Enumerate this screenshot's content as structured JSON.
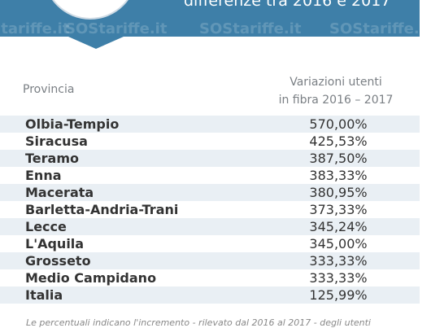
{
  "header": {
    "title": "differenze tra 2016 e 2017",
    "watermark": "SOStariffe.it"
  },
  "table": {
    "columns": [
      "Provincia",
      "Variazioni utenti",
      "in fibra 2016 – 2017"
    ],
    "rows": [
      [
        "Olbia-Tempio",
        "570,00%"
      ],
      [
        "Siracusa",
        "425,53%"
      ],
      [
        "Teramo",
        "387,50%"
      ],
      [
        "Enna",
        "383,33%"
      ],
      [
        "Macerata",
        "380,95%"
      ],
      [
        "Barletta-Andria-Trani",
        "373,33%"
      ],
      [
        "Lecce",
        "345,24%"
      ],
      [
        "L'Aquila",
        "345,00%"
      ],
      [
        "Grosseto",
        "333,33%"
      ],
      [
        "Medio Campidano",
        "333,33%"
      ],
      [
        "Italia",
        "125,99%"
      ]
    ]
  },
  "footer": {
    "note": "Le percentuali indicano l'incremento - rilevato dal 2016 al 2017 - degli utenti"
  }
}
